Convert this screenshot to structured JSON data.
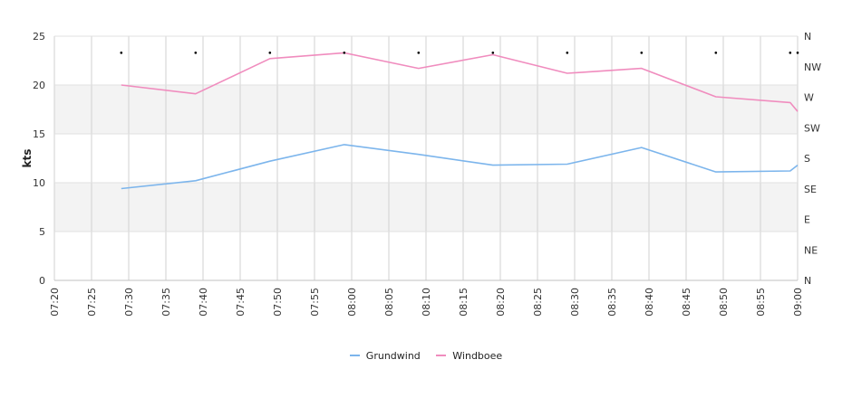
{
  "chart_data": {
    "type": "line",
    "ylabel": "kts",
    "ylim": [
      0,
      25
    ],
    "y_ticks": [
      0,
      5,
      10,
      15,
      20,
      25
    ],
    "x_range": [
      "07:20",
      "09:00"
    ],
    "x_ticks": [
      "07:20",
      "07:25",
      "07:30",
      "07:35",
      "07:40",
      "07:45",
      "07:50",
      "07:55",
      "08:00",
      "08:05",
      "08:10",
      "08:15",
      "08:20",
      "08:25",
      "08:30",
      "08:35",
      "08:40",
      "08:45",
      "08:50",
      "08:55",
      "09:00"
    ],
    "y2_ticks": [
      "N",
      "NE",
      "E",
      "SE",
      "S",
      "SW",
      "W",
      "NW",
      "N"
    ],
    "grid": true,
    "alternating_bands": true,
    "legend_position": "bottom",
    "series": [
      {
        "name": "Grundwind",
        "color": "#7cb5ec",
        "x": [
          "07:29",
          "07:39",
          "07:49",
          "07:59",
          "08:09",
          "08:19",
          "08:29",
          "08:39",
          "08:49",
          "08:59",
          "09:00"
        ],
        "values": [
          9.4,
          10.2,
          12.2,
          13.9,
          12.9,
          11.8,
          11.9,
          13.6,
          11.1,
          11.2,
          11.8
        ]
      },
      {
        "name": "Windboee",
        "color": "#f08cbe",
        "x": [
          "07:29",
          "07:39",
          "07:49",
          "07:59",
          "08:09",
          "08:19",
          "08:29",
          "08:39",
          "08:49",
          "08:59",
          "09:00"
        ],
        "values": [
          20.0,
          19.1,
          22.7,
          23.3,
          21.7,
          23.1,
          21.2,
          21.7,
          18.8,
          18.2,
          17.3
        ]
      }
    ],
    "direction_markers": {
      "x": [
        "07:29",
        "07:39",
        "07:49",
        "07:59",
        "08:09",
        "08:19",
        "08:29",
        "08:39",
        "08:49",
        "08:59",
        "09:00"
      ],
      "values": [
        23.3,
        23.3,
        23.3,
        23.3,
        23.3,
        23.3,
        23.3,
        23.3,
        23.3,
        23.3,
        23.3
      ]
    }
  }
}
